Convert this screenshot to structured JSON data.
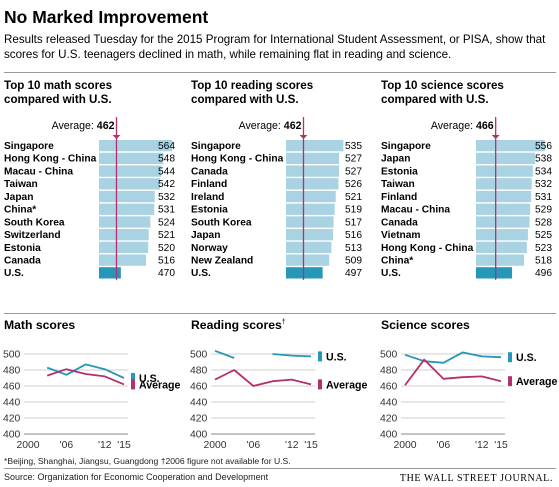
{
  "title": "No Marked Improvement",
  "subtitle": "Results released Tuesday for the 2015 Program for International Student Assessment, or PISA, show that scores for U.S. teenagers declined in math, while remaining flat in reading and science.",
  "colors": {
    "bar": "#a9d3e3",
    "us_bar": "#2597b9",
    "us_line": "#2597b9",
    "avg_line": "#b52f6e",
    "text": "#000000"
  },
  "footnote": "*Beijing, Shanghai, Jiangsu, Guangdong    †2006 figure not available for U.S.",
  "source": "Source: Organization for Economic Cooperation and Development",
  "logo": "THE WALL STREET JOURNAL.",
  "panels": [
    {
      "id": "math",
      "title_line1": "Top 10 math scores",
      "title_line2": "compared with U.S.",
      "avg_prefix": "Average:",
      "avg_value": "462",
      "section_title": "Math scores",
      "section_mark": ""
    },
    {
      "id": "reading",
      "title_line1": "Top 10 reading scores",
      "title_line2": "compared with U.S.",
      "avg_prefix": "Average:",
      "avg_value": "462",
      "section_title": "Reading scores",
      "section_mark": "†"
    },
    {
      "id": "science",
      "title_line1": "Top 10 science scores",
      "title_line2": "compared with U.S.",
      "avg_prefix": "Average:",
      "avg_value": "466",
      "section_title": "Science scores",
      "section_mark": ""
    }
  ],
  "chart_data": [
    {
      "type": "bar",
      "title": "Top 10 math scores compared with U.S.",
      "categories": [
        "Singapore",
        "Hong Kong - China",
        "Macau - China",
        "Taiwan",
        "Japan",
        "China*",
        "South Korea",
        "Switzerland",
        "Estonia",
        "Canada",
        "U.S."
      ],
      "values": [
        564,
        548,
        544,
        542,
        532,
        531,
        524,
        521,
        520,
        516,
        470
      ],
      "reference_line": {
        "label": "Average:",
        "value": 462
      }
    },
    {
      "type": "bar",
      "title": "Top 10 reading scores compared with U.S.",
      "categories": [
        "Singapore",
        "Hong Kong - China",
        "Canada",
        "Finland",
        "Ireland",
        "Estonia",
        "South Korea",
        "Japan",
        "Norway",
        "New Zealand",
        "U.S."
      ],
      "values": [
        535,
        527,
        527,
        526,
        521,
        519,
        517,
        516,
        513,
        509,
        497
      ],
      "reference_line": {
        "label": "Average:",
        "value": 462
      }
    },
    {
      "type": "bar",
      "title": "Top 10 science scores compared with U.S.",
      "categories": [
        "Singapore",
        "Japan",
        "Estonia",
        "Taiwan",
        "Finland",
        "Macau - China",
        "Canada",
        "Vietnam",
        "Hong Kong - China",
        "China*",
        "U.S."
      ],
      "values": [
        556,
        538,
        534,
        532,
        531,
        529,
        528,
        525,
        523,
        518,
        496
      ],
      "reference_line": {
        "label": "Average:",
        "value": 466
      }
    },
    {
      "type": "line",
      "title": "Math scores",
      "x_tick_labels": [
        "2000",
        "'06",
        "'12",
        "'15"
      ],
      "y_ticks": [
        400,
        420,
        440,
        460,
        480,
        500
      ],
      "ylim": [
        400,
        500
      ],
      "series": [
        {
          "name": "U.S.",
          "x": [
            2003,
            2006,
            2009,
            2012,
            2015
          ],
          "y": [
            483,
            474,
            487,
            481,
            470
          ]
        },
        {
          "name": "Average",
          "x": [
            2003,
            2006,
            2009,
            2012,
            2015
          ],
          "y": [
            473,
            481,
            475,
            472,
            462
          ]
        }
      ]
    },
    {
      "type": "line",
      "title": "Reading scores",
      "x_tick_labels": [
        "2000",
        "'06",
        "'12",
        "'15"
      ],
      "y_ticks": [
        400,
        420,
        440,
        460,
        480,
        500
      ],
      "ylim": [
        400,
        500
      ],
      "series": [
        {
          "name": "U.S.",
          "x": [
            2000,
            2003,
            2009,
            2012,
            2015
          ],
          "y": [
            504,
            495,
            500,
            498,
            497
          ]
        },
        {
          "name": "Average",
          "x": [
            2000,
            2003,
            2006,
            2009,
            2012,
            2015
          ],
          "y": [
            468,
            480,
            460,
            466,
            468,
            462
          ]
        }
      ]
    },
    {
      "type": "line",
      "title": "Science scores",
      "x_tick_labels": [
        "2000",
        "'06",
        "'12",
        "'15"
      ],
      "y_ticks": [
        400,
        420,
        440,
        460,
        480,
        500
      ],
      "ylim": [
        400,
        500
      ],
      "series": [
        {
          "name": "U.S.",
          "x": [
            2000,
            2003,
            2006,
            2009,
            2012,
            2015
          ],
          "y": [
            499,
            491,
            489,
            502,
            497,
            496
          ]
        },
        {
          "name": "Average",
          "x": [
            2000,
            2003,
            2006,
            2009,
            2012,
            2015
          ],
          "y": [
            461,
            493,
            469,
            471,
            472,
            466
          ]
        }
      ]
    }
  ]
}
